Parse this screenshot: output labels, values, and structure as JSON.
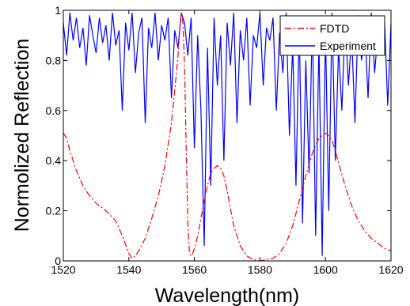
{
  "chart_data": {
    "type": "line",
    "xlabel": "Wavelength(nm)",
    "ylabel": "Normolized Reflection",
    "xlim": [
      1520,
      1620
    ],
    "ylim": [
      0,
      1
    ],
    "xticks": [
      1520,
      1540,
      1560,
      1580,
      1600,
      1620
    ],
    "yticks": [
      0,
      0.2,
      0.4,
      0.6,
      0.8,
      1
    ],
    "ytick_labels": [
      "0",
      "0.2",
      "0.4",
      "0.6",
      "0.8",
      "1"
    ],
    "legend_position": "top-right",
    "series": [
      {
        "name": "FDTD",
        "color": "#ff0000",
        "style": "dash-dot",
        "x": [
          1520,
          1521,
          1522,
          1524,
          1526,
          1528,
          1530,
          1533,
          1536,
          1538,
          1540,
          1541,
          1542,
          1543,
          1545,
          1547,
          1549,
          1551,
          1553,
          1554,
          1555,
          1555.5,
          1556,
          1556.5,
          1557,
          1557.5,
          1558,
          1558.5,
          1559,
          1559.5,
          1560,
          1561,
          1562,
          1563,
          1564,
          1565,
          1566,
          1567,
          1568,
          1569,
          1570,
          1571,
          1572,
          1574,
          1576,
          1578,
          1580,
          1582,
          1584,
          1586,
          1588,
          1590,
          1592,
          1594,
          1596,
          1598,
          1600,
          1601,
          1602,
          1603,
          1604,
          1606,
          1608,
          1610,
          1612,
          1614,
          1616,
          1618,
          1620
        ],
        "y": [
          0.51,
          0.49,
          0.44,
          0.36,
          0.3,
          0.26,
          0.23,
          0.2,
          0.16,
          0.1,
          0.03,
          0.01,
          0.02,
          0.04,
          0.09,
          0.17,
          0.26,
          0.38,
          0.55,
          0.68,
          0.82,
          0.92,
          0.99,
          0.95,
          0.78,
          0.45,
          0.15,
          0.03,
          0.02,
          0.03,
          0.05,
          0.1,
          0.17,
          0.24,
          0.3,
          0.35,
          0.37,
          0.38,
          0.37,
          0.34,
          0.28,
          0.21,
          0.14,
          0.06,
          0.02,
          0.005,
          0.0,
          0.005,
          0.01,
          0.03,
          0.07,
          0.14,
          0.24,
          0.34,
          0.43,
          0.49,
          0.51,
          0.5,
          0.48,
          0.44,
          0.39,
          0.3,
          0.22,
          0.16,
          0.12,
          0.09,
          0.07,
          0.05,
          0.04
        ]
      },
      {
        "name": "Experiment",
        "color": "#0000ff",
        "style": "solid",
        "x": [
          1520,
          1521,
          1522,
          1523,
          1524,
          1525,
          1526,
          1527,
          1528,
          1529,
          1530,
          1531,
          1532,
          1533,
          1534,
          1535,
          1536,
          1537,
          1538,
          1539,
          1540,
          1541,
          1542,
          1543,
          1544,
          1545,
          1546,
          1547,
          1548,
          1549,
          1550,
          1551,
          1552,
          1553,
          1554,
          1555,
          1556,
          1557,
          1558,
          1559,
          1560,
          1561,
          1562,
          1563,
          1564,
          1565,
          1566,
          1567,
          1568,
          1569,
          1570,
          1571,
          1572,
          1573,
          1574,
          1575,
          1576,
          1577,
          1578,
          1579,
          1580,
          1581,
          1582,
          1583,
          1584,
          1585,
          1586,
          1587,
          1588,
          1589,
          1590,
          1591,
          1592,
          1593,
          1594,
          1595,
          1596,
          1597,
          1598,
          1599,
          1600,
          1601,
          1602,
          1603,
          1604,
          1605,
          1606,
          1607,
          1608,
          1609,
          1610,
          1611,
          1612,
          1613,
          1614,
          1615,
          1616,
          1617,
          1618,
          1619,
          1620
        ],
        "y": [
          0.95,
          0.82,
          0.99,
          0.88,
          0.97,
          0.85,
          0.93,
          0.78,
          0.98,
          0.9,
          0.83,
          0.97,
          0.87,
          0.94,
          0.8,
          0.99,
          0.86,
          0.92,
          0.6,
          0.95,
          0.84,
          0.99,
          0.75,
          0.91,
          0.97,
          0.55,
          0.93,
          0.85,
          0.99,
          0.8,
          0.94,
          0.88,
          0.97,
          0.65,
          0.92,
          0.85,
          0.99,
          0.95,
          0.82,
          0.97,
          0.45,
          0.9,
          0.6,
          0.06,
          0.85,
          0.3,
          0.97,
          0.7,
          0.9,
          0.4,
          0.95,
          0.78,
          0.99,
          0.55,
          0.92,
          0.8,
          0.97,
          0.62,
          0.9,
          0.85,
          0.99,
          0.7,
          0.93,
          0.88,
          0.97,
          0.6,
          0.91,
          0.75,
          0.99,
          0.5,
          0.86,
          0.3,
          0.94,
          0.15,
          0.8,
          0.35,
          0.97,
          0.1,
          0.88,
          0.02,
          0.92,
          0.2,
          0.99,
          0.4,
          0.85,
          0.6,
          0.97,
          0.7,
          0.9,
          0.55,
          0.98,
          0.8,
          0.93,
          0.65,
          0.99,
          0.75,
          0.91,
          0.85,
          0.97,
          0.62,
          0.95
        ]
      }
    ]
  }
}
